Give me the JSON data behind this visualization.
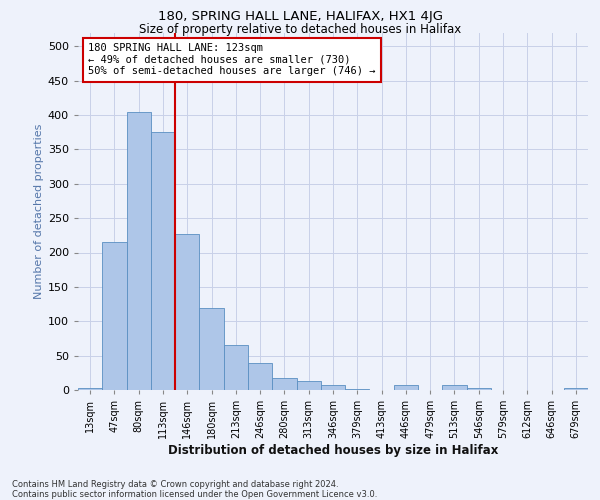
{
  "title1": "180, SPRING HALL LANE, HALIFAX, HX1 4JG",
  "title2": "Size of property relative to detached houses in Halifax",
  "xlabel": "Distribution of detached houses by size in Halifax",
  "ylabel": "Number of detached properties",
  "bar_labels": [
    "13sqm",
    "47sqm",
    "80sqm",
    "113sqm",
    "146sqm",
    "180sqm",
    "213sqm",
    "246sqm",
    "280sqm",
    "313sqm",
    "346sqm",
    "379sqm",
    "413sqm",
    "446sqm",
    "479sqm",
    "513sqm",
    "546sqm",
    "579sqm",
    "612sqm",
    "646sqm",
    "679sqm"
  ],
  "bar_values": [
    3,
    215,
    405,
    375,
    227,
    120,
    65,
    40,
    18,
    13,
    7,
    2,
    0,
    7,
    0,
    7,
    3,
    0,
    0,
    0,
    3
  ],
  "bar_color": "#aec6e8",
  "bar_edgecolor": "#5a8fc2",
  "vline_color": "#cc0000",
  "annotation_text": "180 SPRING HALL LANE: 123sqm\n← 49% of detached houses are smaller (730)\n50% of semi-detached houses are larger (746) →",
  "annotation_box_facecolor": "#ffffff",
  "annotation_box_edgecolor": "#cc0000",
  "ylim": [
    0,
    520
  ],
  "yticks": [
    0,
    50,
    100,
    150,
    200,
    250,
    300,
    350,
    400,
    450,
    500
  ],
  "footer": "Contains HM Land Registry data © Crown copyright and database right 2024.\nContains public sector information licensed under the Open Government Licence v3.0.",
  "background_color": "#eef2fb",
  "grid_color": "#c8d0e8",
  "ylabel_color": "#5577aa",
  "title1_fontsize": 9.5,
  "title2_fontsize": 8.5
}
